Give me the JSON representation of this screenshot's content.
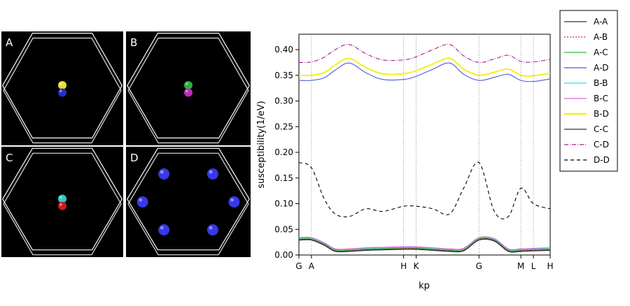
{
  "panels": [
    {
      "label": "A",
      "atoms": [
        {
          "color": "#e8e02a"
        },
        {
          "color": "#2a2acc"
        }
      ]
    },
    {
      "label": "B",
      "atoms": [
        {
          "color": "#2fae3a"
        },
        {
          "color": "#c02ab8"
        }
      ]
    },
    {
      "label": "C",
      "atoms": [
        {
          "color": "#35c8c8"
        },
        {
          "color": "#cc1a1a"
        }
      ]
    },
    {
      "label": "D",
      "atoms": [
        {
          "color": "#3838e6"
        },
        {
          "color": "#3838e6"
        },
        {
          "color": "#3838e6"
        },
        {
          "color": "#3838e6"
        },
        {
          "color": "#3838e6"
        },
        {
          "color": "#3838e6"
        }
      ]
    }
  ],
  "chart_data": {
    "type": "line",
    "title": "",
    "xlabel": "kp",
    "ylabel": "susceptibility(1/eV)",
    "ylim": [
      0,
      0.43
    ],
    "xlim": [
      0,
      8.85
    ],
    "grid": false,
    "legend_position": "right",
    "yticks": [
      "0.00",
      "0.05",
      "0.10",
      "0.15",
      "0.20",
      "0.25",
      "0.30",
      "0.35",
      "0.40"
    ],
    "k_points": [
      {
        "label": "G",
        "x": 0
      },
      {
        "label": "A",
        "x": 0.45
      },
      {
        "label": "H",
        "x": 3.75
      },
      {
        "label": "K",
        "x": 4.2
      },
      {
        "label": "G",
        "x": 6.45
      },
      {
        "label": "M",
        "x": 7.95
      },
      {
        "label": "L",
        "x": 8.4
      },
      {
        "label": "H",
        "x": 9.0
      }
    ],
    "x": [
      0,
      0.45,
      0.9,
      1.3,
      1.8,
      2.4,
      3.0,
      3.75,
      4.2,
      4.8,
      5.4,
      5.9,
      6.45,
      7.0,
      7.5,
      7.95,
      8.4,
      9.0
    ],
    "series": [
      {
        "name": "A-A",
        "color": "#333333",
        "dash": "solid",
        "values": [
          0.03,
          0.03,
          0.02,
          0.008,
          0.008,
          0.01,
          0.011,
          0.012,
          0.012,
          0.01,
          0.008,
          0.009,
          0.03,
          0.028,
          0.008,
          0.008,
          0.009,
          0.01
        ]
      },
      {
        "name": "A-B",
        "color": "#d03030",
        "dash": "2,2",
        "values": [
          0.031,
          0.031,
          0.021,
          0.009,
          0.009,
          0.011,
          0.012,
          0.013,
          0.013,
          0.011,
          0.009,
          0.01,
          0.031,
          0.029,
          0.009,
          0.009,
          0.01,
          0.011
        ]
      },
      {
        "name": "A-C",
        "color": "#2fbf3a",
        "dash": "solid",
        "values": [
          0.032,
          0.032,
          0.022,
          0.01,
          0.01,
          0.012,
          0.013,
          0.014,
          0.014,
          0.012,
          0.01,
          0.011,
          0.032,
          0.03,
          0.01,
          0.01,
          0.011,
          0.012
        ]
      },
      {
        "name": "A-D",
        "color": "#4a5ae0",
        "dash": "solid",
        "values": [
          0.34,
          0.34,
          0.345,
          0.36,
          0.374,
          0.355,
          0.342,
          0.342,
          0.348,
          0.362,
          0.374,
          0.352,
          0.34,
          0.346,
          0.352,
          0.34,
          0.338,
          0.343
        ]
      },
      {
        "name": "B-B",
        "color": "#3ad8d8",
        "dash": "solid",
        "values": [
          0.033,
          0.033,
          0.023,
          0.011,
          0.011,
          0.013,
          0.014,
          0.015,
          0.015,
          0.013,
          0.011,
          0.012,
          0.033,
          0.031,
          0.011,
          0.011,
          0.012,
          0.013
        ]
      },
      {
        "name": "B-C",
        "color": "#e060d8",
        "dash": "solid",
        "values": [
          0.034,
          0.034,
          0.024,
          0.012,
          0.012,
          0.014,
          0.015,
          0.016,
          0.016,
          0.014,
          0.012,
          0.013,
          0.034,
          0.032,
          0.012,
          0.012,
          0.013,
          0.014
        ]
      },
      {
        "name": "B-D",
        "color": "#f4f020",
        "dash": "solid",
        "values": [
          0.35,
          0.35,
          0.355,
          0.37,
          0.383,
          0.365,
          0.353,
          0.353,
          0.359,
          0.372,
          0.383,
          0.362,
          0.35,
          0.356,
          0.362,
          0.35,
          0.349,
          0.354
        ]
      },
      {
        "name": "C-C",
        "color": "#333333",
        "dash": "solid",
        "values": [
          0.029,
          0.029,
          0.019,
          0.007,
          0.007,
          0.009,
          0.01,
          0.011,
          0.011,
          0.009,
          0.007,
          0.008,
          0.029,
          0.027,
          0.007,
          0.007,
          0.008,
          0.009
        ]
      },
      {
        "name": "C-D",
        "color": "#a02090",
        "dash": "6,2,1,2",
        "values": [
          0.375,
          0.376,
          0.385,
          0.4,
          0.41,
          0.392,
          0.38,
          0.38,
          0.386,
          0.4,
          0.41,
          0.388,
          0.375,
          0.382,
          0.389,
          0.377,
          0.376,
          0.381
        ]
      },
      {
        "name": "D-D",
        "color": "#000000",
        "dash": "5,4",
        "values": [
          0.18,
          0.17,
          0.11,
          0.08,
          0.075,
          0.09,
          0.085,
          0.095,
          0.095,
          0.09,
          0.08,
          0.13,
          0.18,
          0.085,
          0.075,
          0.13,
          0.1,
          0.09
        ]
      }
    ]
  }
}
